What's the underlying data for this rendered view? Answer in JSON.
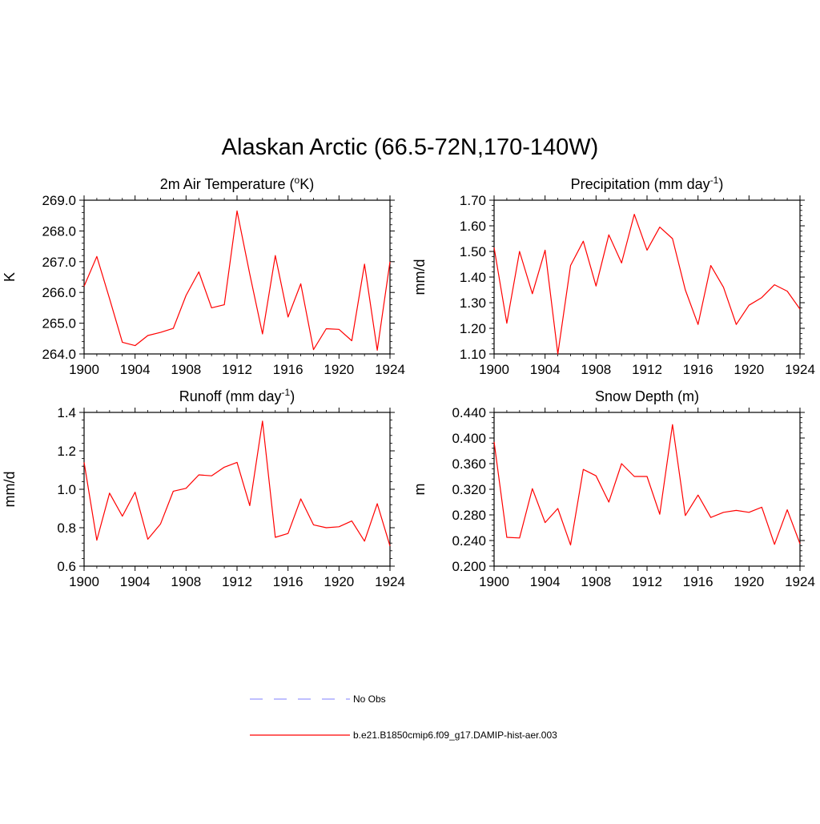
{
  "figure": {
    "title": "Alaskan Arctic (66.5-72N,170-140W)"
  },
  "chart_data": [
    {
      "type": "line",
      "title_main": "2m Air Temperature (",
      "title_sup": "o",
      "title_tail": "K)",
      "ylabel": "K",
      "ylim": [
        264.0,
        269.0
      ],
      "yticks": [
        "264.0",
        "265.0",
        "266.0",
        "267.0",
        "268.0",
        "269.0"
      ],
      "xlim": [
        1900,
        1924
      ],
      "xticks": [
        "1900",
        "1904",
        "1908",
        "1912",
        "1916",
        "1920",
        "1924"
      ],
      "series": [
        {
          "name": "b.e21.B1850cmip6.f09_g17.DAMIP-hist-aer.003",
          "color": "#ff0000",
          "x": [
            1900,
            1901,
            1902,
            1903,
            1904,
            1905,
            1906,
            1907,
            1908,
            1909,
            1910,
            1911,
            1912,
            1913,
            1914,
            1915,
            1916,
            1917,
            1918,
            1919,
            1920,
            1921,
            1922,
            1923,
            1924
          ],
          "y": [
            266.2,
            267.17,
            265.8,
            264.38,
            264.27,
            264.6,
            264.7,
            264.83,
            265.9,
            266.67,
            265.5,
            265.6,
            268.65,
            266.6,
            264.65,
            267.2,
            265.2,
            266.28,
            264.14,
            264.82,
            264.8,
            264.43,
            266.92,
            264.12,
            267.0
          ]
        }
      ]
    },
    {
      "type": "line",
      "title_main": "Precipitation (mm day",
      "title_sup": "-1",
      "title_tail": ")",
      "ylabel": "mm/d",
      "ylim": [
        1.1,
        1.7
      ],
      "yticks": [
        "1.10",
        "1.20",
        "1.30",
        "1.40",
        "1.50",
        "1.60",
        "1.70"
      ],
      "xlim": [
        1900,
        1924
      ],
      "xticks": [
        "1900",
        "1904",
        "1908",
        "1912",
        "1916",
        "1920",
        "1924"
      ],
      "series": [
        {
          "name": "b.e21.B1850cmip6.f09_g17.DAMIP-hist-aer.003",
          "color": "#ff0000",
          "x": [
            1900,
            1901,
            1902,
            1903,
            1904,
            1905,
            1906,
            1907,
            1908,
            1909,
            1910,
            1911,
            1912,
            1913,
            1914,
            1915,
            1916,
            1917,
            1918,
            1919,
            1920,
            1921,
            1922,
            1923,
            1924
          ],
          "y": [
            1.515,
            1.22,
            1.5,
            1.335,
            1.505,
            1.1,
            1.445,
            1.54,
            1.365,
            1.565,
            1.455,
            1.645,
            1.505,
            1.595,
            1.55,
            1.35,
            1.215,
            1.445,
            1.36,
            1.215,
            1.29,
            1.32,
            1.37,
            1.345,
            1.275
          ]
        }
      ]
    },
    {
      "type": "line",
      "title_main": "Runoff (mm day",
      "title_sup": "-1",
      "title_tail": ")",
      "ylabel": "mm/d",
      "ylim": [
        0.6,
        1.4
      ],
      "yticks": [
        "0.6",
        "0.8",
        "1.0",
        "1.2",
        "1.4"
      ],
      "xlim": [
        1900,
        1924
      ],
      "xticks": [
        "1900",
        "1904",
        "1908",
        "1912",
        "1916",
        "1920",
        "1924"
      ],
      "series": [
        {
          "name": "b.e21.B1850cmip6.f09_g17.DAMIP-hist-aer.003",
          "color": "#ff0000",
          "x": [
            1900,
            1901,
            1902,
            1903,
            1904,
            1905,
            1906,
            1907,
            1908,
            1909,
            1910,
            1911,
            1912,
            1913,
            1914,
            1915,
            1916,
            1917,
            1918,
            1919,
            1920,
            1921,
            1922,
            1923,
            1924
          ],
          "y": [
            1.14,
            0.735,
            0.98,
            0.86,
            0.985,
            0.74,
            0.82,
            0.99,
            1.005,
            1.075,
            1.07,
            1.115,
            1.14,
            0.915,
            1.355,
            0.75,
            0.77,
            0.95,
            0.815,
            0.8,
            0.805,
            0.835,
            0.73,
            0.925,
            0.705
          ]
        }
      ]
    },
    {
      "type": "line",
      "title_main": "Snow Depth (m)",
      "title_sup": "",
      "title_tail": "",
      "ylabel": "m",
      "ylim": [
        0.2,
        0.44
      ],
      "yticks": [
        "0.200",
        "0.240",
        "0.280",
        "0.320",
        "0.360",
        "0.400",
        "0.440"
      ],
      "xlim": [
        1900,
        1924
      ],
      "xticks": [
        "1900",
        "1904",
        "1908",
        "1912",
        "1916",
        "1920",
        "1924"
      ],
      "series": [
        {
          "name": "b.e21.B1850cmip6.f09_g17.DAMIP-hist-aer.003",
          "color": "#ff0000",
          "x": [
            1900,
            1901,
            1902,
            1903,
            1904,
            1905,
            1906,
            1907,
            1908,
            1909,
            1910,
            1911,
            1912,
            1913,
            1914,
            1915,
            1916,
            1917,
            1918,
            1919,
            1920,
            1921,
            1922,
            1923,
            1924
          ],
          "y": [
            0.394,
            0.245,
            0.244,
            0.321,
            0.268,
            0.29,
            0.233,
            0.351,
            0.341,
            0.3,
            0.36,
            0.34,
            0.34,
            0.281,
            0.421,
            0.279,
            0.311,
            0.276,
            0.284,
            0.287,
            0.284,
            0.292,
            0.234,
            0.288,
            0.235
          ]
        }
      ]
    }
  ],
  "legend": {
    "placement": "bottom-center",
    "items": [
      {
        "label": "No Obs",
        "style": "dashed",
        "color": "#9999ff"
      },
      {
        "label": "b.e21.B1850cmip6.f09_g17.DAMIP-hist-aer.003",
        "style": "solid",
        "color": "#ff0000"
      }
    ]
  }
}
